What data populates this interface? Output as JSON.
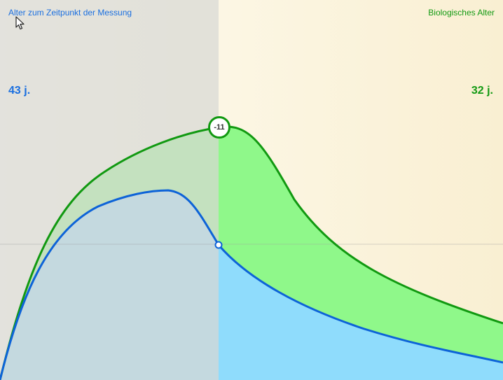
{
  "labels": {
    "measurement_age_title": "Alter zum Zeitpunkt der Messung",
    "measurement_age_value": "43 j.",
    "biological_age_title": "Biologisches Alter",
    "biological_age_value": "32 j.",
    "difference_badge": "-11"
  },
  "colors": {
    "measurement_accent": "#1a6fe0",
    "biological_accent": "#139a13",
    "green_curve": "#119911",
    "green_fill": "#8ff88a",
    "blue_curve": "#0d63d8",
    "blue_fill": "#8fdcfc",
    "left_overlay": "#d8d8d4",
    "right_bg_start": "#fefcf2",
    "right_bg_end": "#f9efd2"
  },
  "icons": {
    "cursor": "arrow-cursor-icon"
  }
}
